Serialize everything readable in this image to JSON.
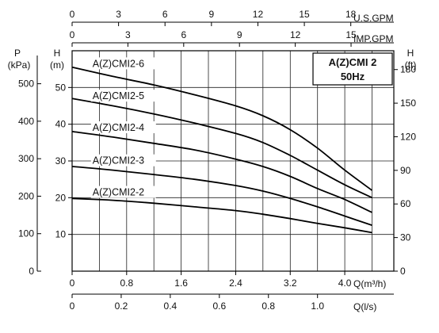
{
  "chart_data": {
    "type": "line",
    "title": "A(Z)CMI 2",
    "subtitle": "50Hz",
    "grid": true,
    "x_axis_primary": {
      "label": "Q(m³/h)",
      "ticks": [
        "0",
        "0.8",
        "1.6",
        "2.4",
        "3.2",
        "4.0"
      ],
      "range": [
        0,
        4.72
      ]
    },
    "x_axis_ls": {
      "label": "Q(l/s)",
      "ticks": [
        "0",
        "0.2",
        "0.4",
        "0.6",
        "0.8",
        "1.0"
      ],
      "range": [
        0,
        1.311
      ]
    },
    "x_axis_usgpm": {
      "label": "U.S.GPM",
      "ticks": [
        "0",
        "3",
        "6",
        "9",
        "12",
        "15",
        "18"
      ],
      "range": [
        0,
        20.78
      ]
    },
    "x_axis_impgpm": {
      "label": "IMP.GPM",
      "ticks": [
        "0",
        "3",
        "6",
        "9",
        "12",
        "15"
      ],
      "range": [
        0,
        17.3
      ]
    },
    "y_axis_m": {
      "label": "H",
      "unit": "(m)",
      "ticks": [
        "10",
        "20",
        "30",
        "40",
        "50"
      ],
      "range": [
        0,
        60
      ]
    },
    "y_axis_kpa": {
      "label": "P",
      "unit": "(kPa)",
      "ticks": [
        "0",
        "100",
        "200",
        "300",
        "400",
        "500"
      ],
      "range": [
        0,
        588
      ]
    },
    "y_axis_ft": {
      "label": "H",
      "unit": "(ft)",
      "ticks": [
        "0",
        "30",
        "60",
        "90",
        "120",
        "150",
        "180"
      ],
      "range": [
        0,
        196.8
      ]
    },
    "series": [
      {
        "name": "A(Z)CMI2-6",
        "label_at": [
          0.3,
          55.6
        ],
        "x": [
          0,
          0.6,
          1.2,
          1.8,
          2.4,
          2.8,
          3.2,
          3.6,
          4.0,
          4.4
        ],
        "y": [
          55.5,
          53.0,
          50.7,
          48.0,
          45.0,
          42.3,
          38.5,
          33.5,
          27.5,
          22.0
        ]
      },
      {
        "name": "A(Z)CMI2-5",
        "label_at": [
          0.3,
          46.8
        ],
        "x": [
          0,
          0.6,
          1.2,
          1.8,
          2.4,
          2.8,
          3.2,
          3.6,
          4.0,
          4.4
        ],
        "y": [
          47.0,
          45.0,
          42.8,
          40.3,
          37.5,
          35.0,
          31.5,
          27.5,
          23.5,
          20.0
        ]
      },
      {
        "name": "A(Z)CMI2-4",
        "label_at": [
          0.3,
          38.2
        ],
        "x": [
          0,
          0.6,
          1.2,
          1.8,
          2.4,
          2.8,
          3.2,
          3.6,
          4.0,
          4.4
        ],
        "y": [
          38.0,
          36.5,
          34.8,
          33.0,
          30.5,
          28.5,
          25.8,
          22.5,
          19.5,
          16.0
        ]
      },
      {
        "name": "A(Z)CMI2-3",
        "label_at": [
          0.3,
          29.2
        ],
        "x": [
          0,
          0.6,
          1.2,
          1.8,
          2.4,
          2.8,
          3.2,
          3.6,
          4.0,
          4.4
        ],
        "y": [
          28.5,
          27.5,
          26.3,
          25.0,
          23.3,
          21.8,
          19.8,
          17.5,
          15.0,
          12.5
        ]
      },
      {
        "name": "A(Z)CMI2-2",
        "label_at": [
          0.3,
          20.6
        ],
        "x": [
          0,
          0.6,
          1.2,
          1.8,
          2.4,
          2.8,
          3.2,
          3.6,
          4.0,
          4.4
        ],
        "y": [
          19.8,
          19.3,
          18.5,
          17.5,
          16.5,
          15.5,
          14.3,
          13.0,
          11.8,
          10.5
        ]
      }
    ]
  }
}
